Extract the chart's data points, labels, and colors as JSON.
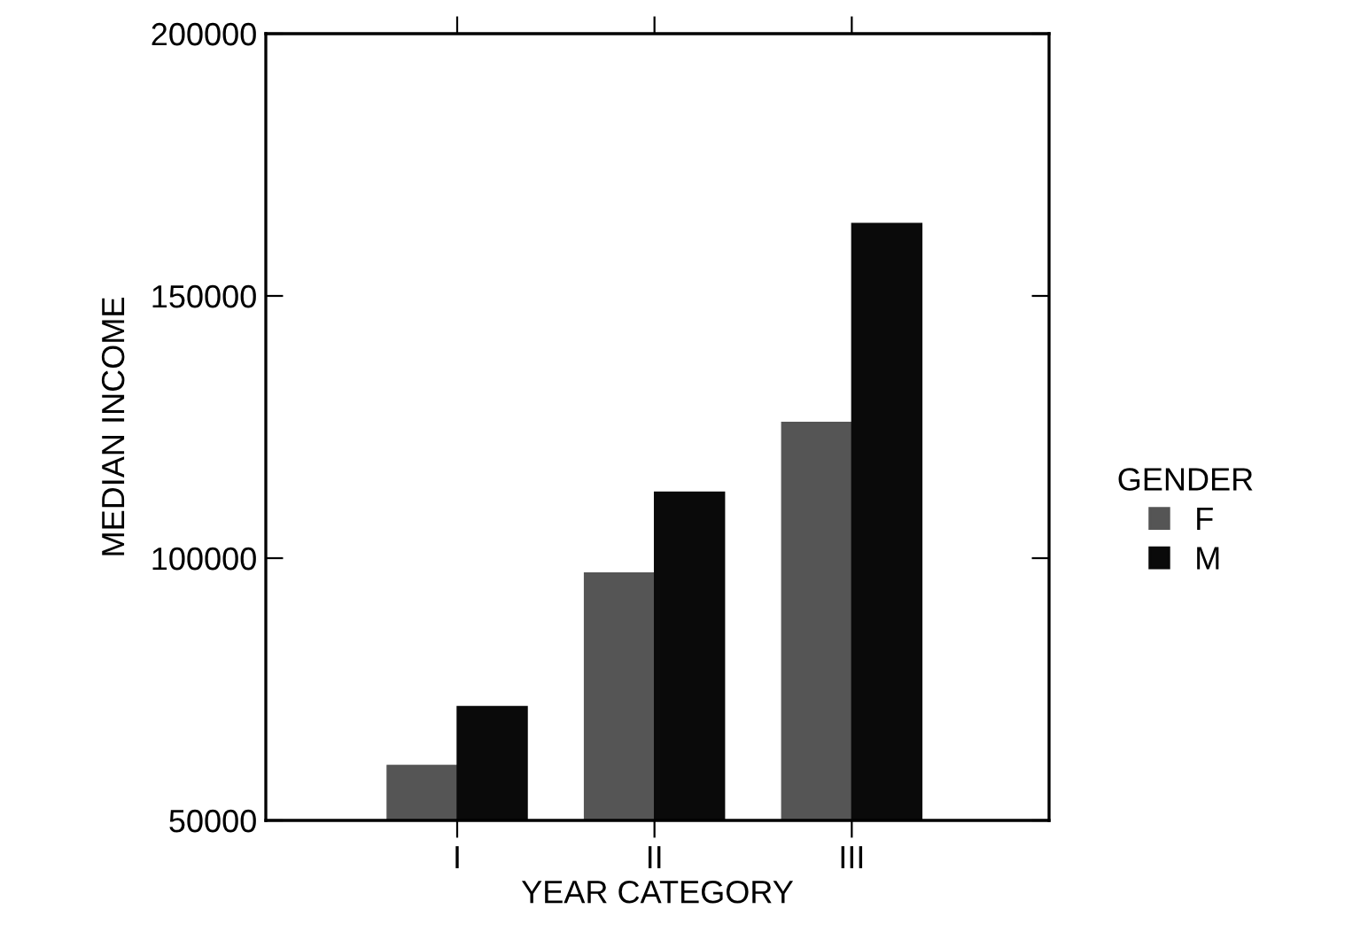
{
  "chart_data": {
    "type": "bar",
    "xlabel": "YEAR CATEGORY",
    "ylabel": "MEDIAN INCOME",
    "legend_title": "GENDER",
    "categories": [
      "I",
      "II",
      "III"
    ],
    "series": [
      {
        "name": "F",
        "color": "#555555",
        "values": [
          60500,
          97200,
          125900
        ]
      },
      {
        "name": "M",
        "color": "#0a0a0a",
        "values": [
          71700,
          112600,
          163800
        ]
      }
    ],
    "ylim": [
      50000,
      200000
    ],
    "yticks": [
      50000,
      100000,
      150000,
      200000
    ],
    "grid": false,
    "legend": "right"
  }
}
